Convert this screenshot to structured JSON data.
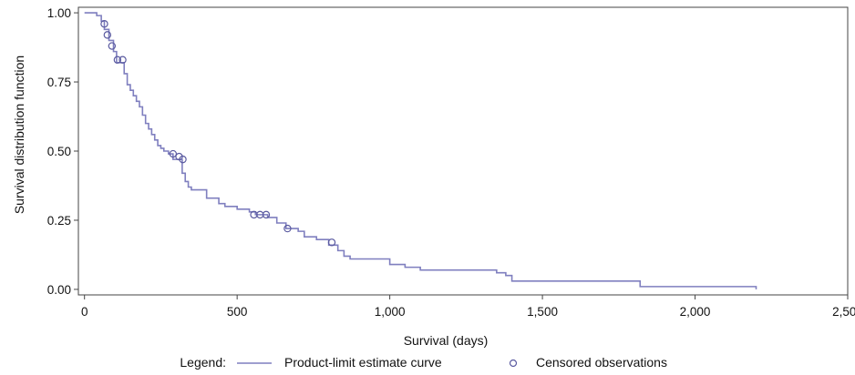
{
  "chart_data": {
    "type": "line",
    "title": "",
    "xlabel": "Survival (days)",
    "ylabel": "Survival distribution function",
    "xlim": [
      -20,
      2500
    ],
    "ylim": [
      -0.02,
      1.02
    ],
    "x_ticks": [
      0,
      500,
      1000,
      1500,
      2000,
      2500
    ],
    "x_tick_labels": [
      "0",
      "500",
      "1,000",
      "1,500",
      "2,000",
      "2,500"
    ],
    "y_ticks": [
      0,
      0.25,
      0.5,
      0.75,
      1.0
    ],
    "y_tick_labels": [
      "0.00",
      "0.25",
      "0.50",
      "0.75",
      "1.00"
    ],
    "grid": false,
    "legend": {
      "placement": "bottom",
      "title": "Legend:",
      "items": [
        "Product-limit estimate curve",
        "Censored observations"
      ]
    },
    "colors": {
      "curve": "#7f7fbf",
      "censor": "#5a5aa0",
      "frame": "#444444"
    },
    "series": [
      {
        "name": "Product-limit estimate curve",
        "kind": "step",
        "x": [
          0,
          40,
          55,
          65,
          80,
          95,
          105,
          130,
          140,
          150,
          160,
          170,
          180,
          190,
          200,
          210,
          220,
          230,
          240,
          250,
          260,
          275,
          290,
          320,
          330,
          340,
          350,
          360,
          400,
          440,
          460,
          500,
          540,
          560,
          600,
          630,
          660,
          700,
          720,
          760,
          800,
          830,
          850,
          870,
          950,
          1000,
          1050,
          1100,
          1200,
          1300,
          1350,
          1380,
          1400,
          1420,
          1500,
          1600,
          1700,
          1820,
          1900,
          2000,
          2100,
          2200
        ],
        "y": [
          1.0,
          0.99,
          0.97,
          0.94,
          0.9,
          0.86,
          0.82,
          0.78,
          0.74,
          0.72,
          0.7,
          0.68,
          0.66,
          0.63,
          0.6,
          0.58,
          0.56,
          0.54,
          0.52,
          0.51,
          0.5,
          0.49,
          0.47,
          0.42,
          0.39,
          0.37,
          0.36,
          0.36,
          0.33,
          0.31,
          0.3,
          0.29,
          0.28,
          0.27,
          0.26,
          0.24,
          0.22,
          0.21,
          0.19,
          0.18,
          0.16,
          0.14,
          0.12,
          0.11,
          0.11,
          0.09,
          0.08,
          0.07,
          0.07,
          0.07,
          0.06,
          0.05,
          0.03,
          0.03,
          0.03,
          0.03,
          0.03,
          0.01,
          0.01,
          0.01,
          0.01,
          0.0
        ]
      },
      {
        "name": "Censored observations",
        "kind": "scatter",
        "points": [
          {
            "x": 65,
            "y": 0.96
          },
          {
            "x": 75,
            "y": 0.92
          },
          {
            "x": 90,
            "y": 0.88
          },
          {
            "x": 108,
            "y": 0.83
          },
          {
            "x": 125,
            "y": 0.83
          },
          {
            "x": 290,
            "y": 0.49
          },
          {
            "x": 310,
            "y": 0.48
          },
          {
            "x": 322,
            "y": 0.47
          },
          {
            "x": 555,
            "y": 0.27
          },
          {
            "x": 575,
            "y": 0.27
          },
          {
            "x": 595,
            "y": 0.27
          },
          {
            "x": 665,
            "y": 0.22
          },
          {
            "x": 810,
            "y": 0.17
          }
        ]
      }
    ]
  }
}
